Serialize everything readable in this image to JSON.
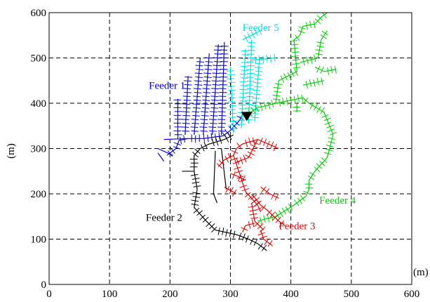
{
  "chart_data": {
    "type": "line",
    "title": "",
    "xlabel": "(m)",
    "ylabel": "(m)",
    "xlim": [
      0,
      600
    ],
    "ylim": [
      0,
      600
    ],
    "xticks": [
      "0",
      "100",
      "200",
      "300",
      "400",
      "500",
      "600"
    ],
    "yticks": [
      "0",
      "100",
      "200",
      "300",
      "400",
      "500",
      "600"
    ],
    "grid": true,
    "source_marker": {
      "x": 327,
      "y": 370
    },
    "series": [
      {
        "name": "Feeder 1",
        "color": "#0000cc",
        "label_pos": {
          "x": 165,
          "y": 432
        },
        "trunks": [
          [
            [
              320,
              375
            ],
            [
              315,
              362
            ],
            [
              300,
              340
            ],
            [
              288,
              328
            ],
            [
              255,
              322
            ],
            [
              230,
              322
            ],
            [
              215,
              318
            ],
            [
              210,
              300
            ],
            [
              195,
              285
            ]
          ],
          [
            [
              213,
              322
            ],
            [
              213,
              410
            ]
          ],
          [
            [
              225,
              330
            ],
            [
              230,
              460
            ]
          ],
          [
            [
              240,
              330
            ],
            [
              250,
              500
            ]
          ],
          [
            [
              255,
              330
            ],
            [
              265,
              510
            ]
          ],
          [
            [
              270,
              330
            ],
            [
              280,
              530
            ]
          ],
          [
            [
              285,
              330
            ],
            [
              290,
              535
            ]
          ]
        ],
        "branches": [
          [
            [
              190,
              320
            ],
            [
              230,
              322
            ]
          ],
          [
            [
              180,
              300
            ],
            [
              205,
              285
            ]
          ],
          [
            [
              180,
              290
            ],
            [
              190,
              272
            ]
          ]
        ]
      },
      {
        "name": "Feeder 5",
        "color": "#00dddd",
        "label_pos": {
          "x": 320,
          "y": 560
        },
        "trunks": [
          [
            [
              305,
              335
            ],
            [
              300,
              480
            ]
          ],
          [
            [
              318,
              345
            ],
            [
              325,
              520
            ]
          ],
          [
            [
              330,
              355
            ],
            [
              335,
              540
            ]
          ],
          [
            [
              340,
              360
            ],
            [
              348,
              500
            ]
          ],
          [
            [
              320,
              540
            ],
            [
              352,
              562
            ]
          ],
          [
            [
              335,
              495
            ],
            [
              375,
              500
            ]
          ]
        ],
        "branches": []
      },
      {
        "name": "Feeder 4",
        "color": "#00cc00",
        "label_pos": {
          "x": 447,
          "y": 178
        },
        "trunks": [
          [
            [
              327,
              375
            ],
            [
              345,
              390
            ],
            [
              375,
              400
            ],
            [
              420,
              412
            ],
            [
              430,
              400
            ],
            [
              455,
              380
            ],
            [
              470,
              330
            ],
            [
              460,
              280
            ],
            [
              440,
              250
            ],
            [
              430,
              230
            ],
            [
              430,
              210
            ],
            [
              425,
              195
            ],
            [
              405,
              175
            ],
            [
              375,
              150
            ],
            [
              345,
              140
            ]
          ],
          [
            [
              375,
              400
            ],
            [
              380,
              450
            ],
            [
              410,
              470
            ],
            [
              405,
              540
            ],
            [
              415,
              550
            ],
            [
              420,
              570
            ],
            [
              440,
              575
            ]
          ],
          [
            [
              440,
              575
            ],
            [
              450,
              590
            ],
            [
              460,
              600
            ]
          ],
          [
            [
              415,
              490
            ],
            [
              445,
              500
            ],
            [
              450,
              540
            ],
            [
              460,
              560
            ]
          ],
          [
            [
              440,
              480
            ],
            [
              455,
              470
            ],
            [
              475,
              475
            ]
          ],
          [
            [
              420,
              440
            ],
            [
              455,
              450
            ]
          ],
          [
            [
              410,
              400
            ],
            [
              410,
              380
            ]
          ]
        ],
        "branches": []
      },
      {
        "name": "Feeder 2",
        "color": "#000000",
        "label_pos": {
          "x": 160,
          "y": 140
        },
        "trunks": [
          [
            [
              305,
              330
            ],
            [
              290,
              320
            ],
            [
              265,
              310
            ],
            [
              250,
              300
            ],
            [
              240,
              285
            ],
            [
              240,
              250
            ],
            [
              245,
              210
            ],
            [
              240,
              170
            ],
            [
              250,
              155
            ],
            [
              260,
              140
            ],
            [
              275,
              120
            ],
            [
              310,
              110
            ],
            [
              330,
              100
            ],
            [
              345,
              90
            ],
            [
              360,
              75
            ]
          ]
        ],
        "branches": [
          [
            [
              275,
              295
            ],
            [
              272,
              200
            ],
            [
              278,
              180
            ]
          ],
          [
            [
              285,
              300
            ],
            [
              293,
              210
            ]
          ],
          [
            [
              220,
              250
            ],
            [
              240,
              250
            ]
          ]
        ]
      },
      {
        "name": "Feeder 3",
        "color": "#dd0000",
        "label_pos": {
          "x": 380,
          "y": 122
        },
        "trunks": [
          [
            [
              320,
              310
            ],
            [
              310,
              300
            ],
            [
              305,
              285
            ],
            [
              310,
              265
            ],
            [
              315,
              245
            ],
            [
              320,
              225
            ],
            [
              325,
              205
            ],
            [
              335,
              190
            ],
            [
              345,
              175
            ],
            [
              350,
              160
            ]
          ],
          [
            [
              320,
              310
            ],
            [
              345,
              320
            ],
            [
              380,
              300
            ]
          ],
          [
            [
              345,
              320
            ],
            [
              330,
              280
            ],
            [
              310,
              270
            ]
          ],
          [
            [
              305,
              285
            ],
            [
              290,
              275
            ],
            [
              280,
              260
            ]
          ],
          [
            [
              335,
              200
            ],
            [
              350,
              175
            ],
            [
              360,
              165
            ],
            [
              380,
              140
            ],
            [
              390,
              130
            ]
          ],
          [
            [
              300,
              245
            ],
            [
              310,
              240
            ],
            [
              325,
              230
            ]
          ],
          [
            [
              290,
              215
            ],
            [
              310,
              200
            ]
          ],
          [
            [
              350,
              215
            ],
            [
              365,
              200
            ],
            [
              380,
              190
            ]
          ],
          [
            [
              335,
              180
            ],
            [
              340,
              140
            ],
            [
              355,
              120
            ]
          ],
          [
            [
              320,
              115
            ],
            [
              325,
              130
            ],
            [
              340,
              135
            ]
          ],
          [
            [
              350,
              120
            ],
            [
              355,
              100
            ],
            [
              370,
              85
            ]
          ]
        ],
        "branches": []
      }
    ]
  }
}
